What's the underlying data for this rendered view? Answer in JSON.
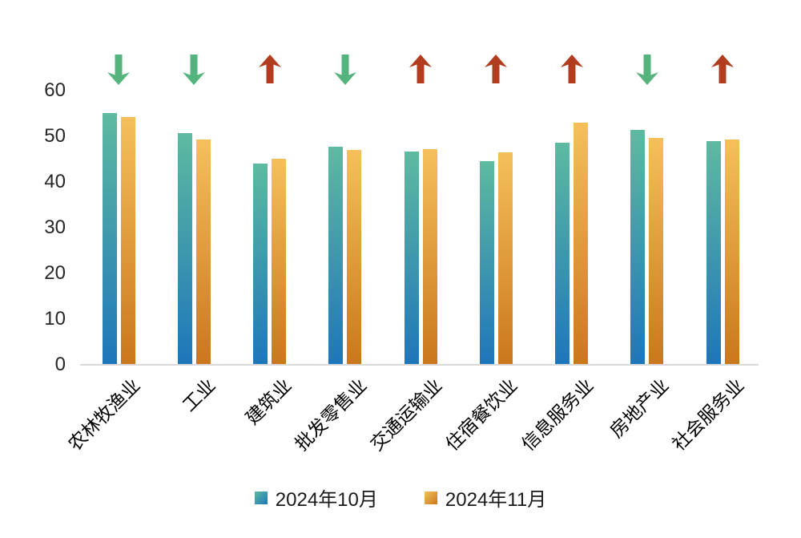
{
  "chart_data": {
    "type": "bar",
    "title": "",
    "categories": [
      "农林牧渔业",
      "工业",
      "建筑业",
      "批发零售业",
      "交通运输业",
      "住宿餐饮业",
      "信息服务业",
      "房地产业",
      "社会服务业"
    ],
    "series": [
      {
        "name": "2024年10月",
        "values": [
          54.9,
          50.5,
          43.8,
          47.6,
          46.5,
          44.3,
          48.4,
          51.2,
          48.7
        ],
        "color_top": "#5ebaa0",
        "color_bottom": "#1e76ba"
      },
      {
        "name": "2024年11月",
        "values": [
          54.1,
          49.2,
          45.0,
          46.9,
          47.1,
          46.4,
          52.8,
          49.4,
          49.2
        ],
        "color_top": "#f5c05c",
        "color_bottom": "#ca771d"
      }
    ],
    "trend_arrows": [
      "down",
      "down",
      "up",
      "down",
      "up",
      "up",
      "up",
      "down",
      "up"
    ],
    "arrow_colors": {
      "up": "#b13d1e",
      "down": "#55b47e"
    },
    "y_ticks": [
      0,
      10,
      20,
      30,
      40,
      50,
      60
    ],
    "ylim": [
      0,
      60
    ],
    "grid": false,
    "legend_position": "bottom",
    "axis_line_color": "#d9d9d9"
  }
}
